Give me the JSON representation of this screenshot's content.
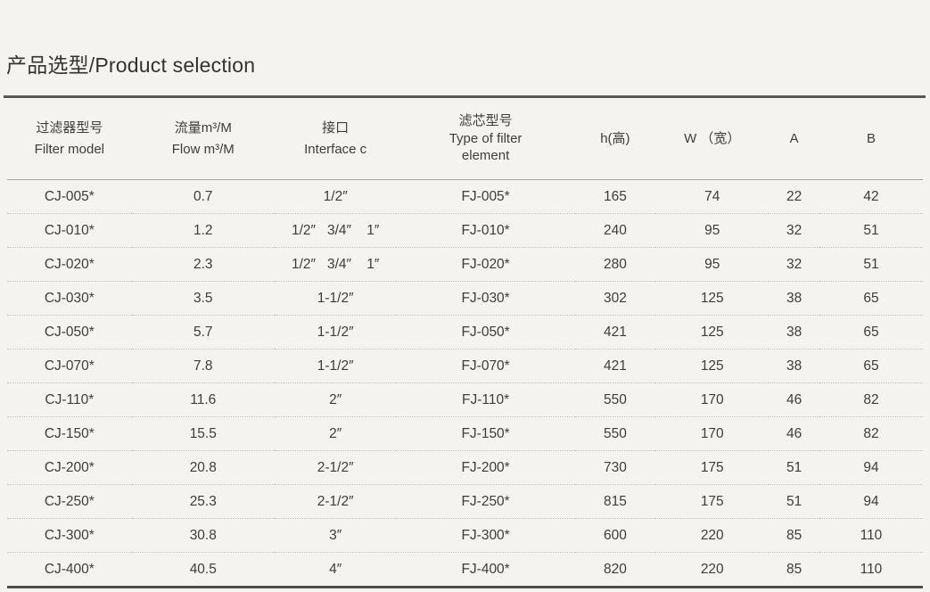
{
  "page": {
    "title": "产品选型/Product selection"
  },
  "colors": {
    "background": "#f4f3f0",
    "text": "#3e3d3b",
    "title_rule": "#575755",
    "header_rule": "#a6a4a1",
    "row_divider_dotted": "#c6c3bf",
    "bottom_rule": "#4e4d4b"
  },
  "table": {
    "headers": [
      {
        "line1": "过滤器型号",
        "line2": "Filter model"
      },
      {
        "line1": "流量m³/M",
        "line2": "Flow m³/M"
      },
      {
        "line1": "接口",
        "line2": "Interface c"
      },
      {
        "line1": "滤芯型号",
        "line2": "Type of filter element"
      },
      {
        "line1": "h(高)",
        "line2": ""
      },
      {
        "line1": "W （宽）",
        "line2": ""
      },
      {
        "line1": "A",
        "line2": ""
      },
      {
        "line1": "B",
        "line2": ""
      }
    ],
    "rows": [
      [
        "CJ-005*",
        "0.7",
        "1/2″",
        "FJ-005*",
        "165",
        "74",
        "22",
        "42"
      ],
      [
        "CJ-010*",
        "1.2",
        "1/2″   3/4″    1″",
        "FJ-010*",
        "240",
        "95",
        "32",
        "51"
      ],
      [
        "CJ-020*",
        "2.3",
        "1/2″   3/4″    1″",
        "FJ-020*",
        "280",
        "95",
        "32",
        "51"
      ],
      [
        "CJ-030*",
        "3.5",
        "1-1/2″",
        "FJ-030*",
        "302",
        "125",
        "38",
        "65"
      ],
      [
        "CJ-050*",
        "5.7",
        "1-1/2″",
        "FJ-050*",
        "421",
        "125",
        "38",
        "65"
      ],
      [
        "CJ-070*",
        "7.8",
        "1-1/2″",
        "FJ-070*",
        "421",
        "125",
        "38",
        "65"
      ],
      [
        "CJ-110*",
        "11.6",
        "2″",
        "FJ-110*",
        "550",
        "170",
        "46",
        "82"
      ],
      [
        "CJ-150*",
        "15.5",
        "2″",
        "FJ-150*",
        "550",
        "170",
        "46",
        "82"
      ],
      [
        "CJ-200*",
        "20.8",
        "2-1/2″",
        "FJ-200*",
        "730",
        "175",
        "51",
        "94"
      ],
      [
        "CJ-250*",
        "25.3",
        "2-1/2″",
        "FJ-250*",
        "815",
        "175",
        "51",
        "94"
      ],
      [
        "CJ-300*",
        "30.8",
        "3″",
        "FJ-300*",
        "600",
        "220",
        "85",
        "110"
      ],
      [
        "CJ-400*",
        "40.5",
        "4″",
        "FJ-400*",
        "820",
        "220",
        "85",
        "110"
      ]
    ]
  }
}
